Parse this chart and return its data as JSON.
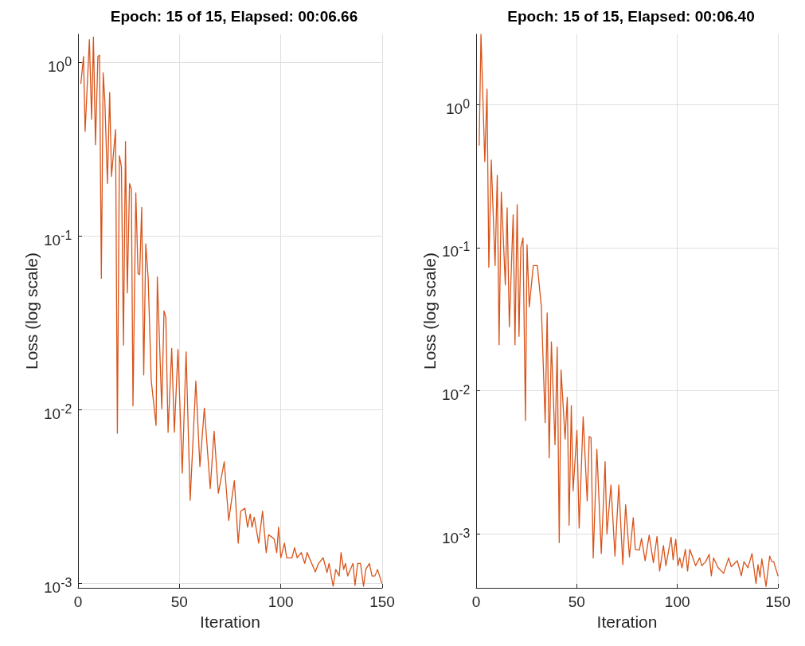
{
  "chart_data": [
    {
      "type": "line",
      "title": "Epoch: 15 of 15, Elapsed: 00:06.66",
      "xlabel": "Iteration",
      "ylabel": "Loss (log scale)",
      "log": "y",
      "grid": true,
      "marker": "none",
      "line_style": "solid",
      "xlim": [
        0,
        150
      ],
      "xticks": [
        0,
        50,
        100,
        150
      ],
      "ylim": [
        0.00094,
        1.45
      ],
      "yticks": [
        {
          "value": 0.001,
          "label": "10$^{-3}$"
        },
        {
          "value": 0.01,
          "label": "10$^{-2}$"
        },
        {
          "value": 0.1,
          "label": "10$^{-1}$"
        },
        {
          "value": 1,
          "label": "10$^{0}$"
        }
      ],
      "series": [
        {
          "color": "#d95319",
          "x": [
            1.4,
            2.7,
            3.5,
            5.6,
            6.7,
            7.6,
            8.6,
            9.8,
            10.6,
            11.5,
            12.4,
            13.2,
            14.5,
            15.6,
            16.5,
            18.5,
            19.4,
            20.4,
            21.4,
            22.4,
            23.4,
            24.3,
            25.4,
            26.3,
            27.1,
            28.5,
            29.6,
            30.4,
            31.4,
            32.4,
            33.4,
            34.6,
            36.1,
            38.5,
            39.1,
            41.3,
            42.4,
            43.3,
            44.4,
            46.2,
            47.5,
            49.3,
            51.4,
            53.3,
            55.3,
            58.1,
            60.1,
            62.3,
            65.2,
            67.1,
            69.2,
            72.1,
            74.3,
            77.1,
            79,
            80.2,
            82.3,
            83.6,
            84.9,
            85.8,
            86.9,
            89.1,
            91,
            92.8,
            94,
            96.7,
            98,
            98.9,
            100,
            101.8,
            102.9,
            105.5,
            106.8,
            108.1,
            110.1,
            111.8,
            113,
            117,
            118.6,
            120.9,
            122.8,
            123.8,
            125.8,
            127.1,
            128.8,
            129.7,
            131,
            131.9,
            133,
            135.6,
            136.6,
            137.9,
            139.3,
            140.8,
            141.9,
            143.7,
            145,
            146.4,
            147.7,
            149.8
          ],
          "values": [
            0.755,
            1.08,
            0.4,
            1.35,
            0.47,
            1.4,
            0.335,
            1.08,
            1.1,
            0.057,
            0.87,
            0.61,
            0.2,
            0.67,
            0.22,
            0.41,
            0.0073,
            0.29,
            0.25,
            0.0235,
            0.35,
            0.047,
            0.2,
            0.186,
            0.0105,
            0.177,
            0.0605,
            0.06,
            0.146,
            0.0158,
            0.09,
            0.057,
            0.0147,
            0.0081,
            0.058,
            0.0101,
            0.037,
            0.034,
            0.0074,
            0.0225,
            0.0074,
            0.0222,
            0.0043,
            0.0215,
            0.003,
            0.0146,
            0.0047,
            0.0102,
            0.0035,
            0.0075,
            0.0033,
            0.005,
            0.0023,
            0.0039,
            0.0017,
            0.0026,
            0.0027,
            0.0021,
            0.0025,
            0.0021,
            0.0024,
            0.0017,
            0.0026,
            0.0015,
            0.0019,
            0.0018,
            0.0015,
            0.0021,
            0.0014,
            0.0017,
            0.0014,
            0.0014,
            0.0016,
            0.0014,
            0.0015,
            0.0013,
            0.0015,
            0.00116,
            0.0013,
            0.0014,
            0.00115,
            0.0013,
            0.00096,
            0.0012,
            0.0011,
            0.0015,
            0.0012,
            0.0013,
            0.0011,
            0.0013,
            0.00097,
            0.0013,
            0.0013,
            0.00096,
            0.0012,
            0.0013,
            0.0011,
            0.0011,
            0.0012,
            0.001
          ]
        }
      ]
    },
    {
      "type": "line",
      "title": "Epoch: 15 of 15, Elapsed: 00:06.40",
      "xlabel": "Iteration",
      "ylabel": "Loss (log scale)",
      "log": "y",
      "grid": true,
      "marker": "none",
      "line_style": "solid",
      "xlim": [
        0,
        150
      ],
      "xticks": [
        0,
        50,
        100,
        150
      ],
      "ylim": [
        0.00042,
        3.1
      ],
      "yticks": [
        {
          "value": 0.001,
          "label": "10$^{-3}$"
        },
        {
          "value": 0.01,
          "label": "10$^{-2}$"
        },
        {
          "value": 0.1,
          "label": "10$^{-1}$"
        },
        {
          "value": 1,
          "label": "10$^{0}$"
        }
      ],
      "series": [
        {
          "color": "#d95319",
          "x": [
            1.5,
            2.4,
            4.3,
            5.4,
            6.3,
            7.5,
            9.4,
            10.5,
            11.4,
            12.5,
            14.5,
            15.4,
            16.5,
            18.4,
            19.3,
            20.4,
            21.3,
            22.2,
            23.3,
            24.5,
            25.3,
            26.4,
            28.4,
            30.4,
            32.4,
            34.3,
            35.3,
            36.3,
            37.4,
            39.2,
            40.3,
            41.3,
            42.2,
            44.2,
            45.3,
            46.2,
            47.3,
            48.2,
            50.1,
            51.2,
            53.2,
            55.2,
            56.2,
            57.1,
            58.2,
            60,
            62.2,
            64.1,
            65,
            67,
            69,
            70.9,
            72.9,
            74.3,
            76.2,
            78.1,
            79.1,
            81.1,
            82.2,
            84,
            86,
            88.1,
            89.9,
            91.2,
            93.1,
            94.3,
            96.9,
            97.9,
            99.2,
            100.3,
            101.2,
            102.3,
            104,
            105.1,
            106.2,
            109.1,
            111.1,
            112.1,
            114.1,
            115.8,
            116.9,
            118,
            120.3,
            123,
            125.5,
            126.8,
            129.8,
            131.8,
            133.1,
            135.1,
            137.1,
            139.1,
            140.1,
            141.1,
            142,
            144.1,
            145.9,
            147,
            147.9,
            150
          ],
          "values": [
            0.52,
            3.1,
            0.4,
            1.28,
            0.073,
            0.41,
            0.075,
            0.32,
            0.021,
            0.245,
            0.055,
            0.19,
            0.028,
            0.17,
            0.021,
            0.2,
            0.024,
            0.1,
            0.117,
            0.0062,
            0.105,
            0.0386,
            0.075,
            0.075,
            0.039,
            0.006,
            0.035,
            0.0034,
            0.022,
            0.0042,
            0.0202,
            0.00087,
            0.014,
            0.0046,
            0.009,
            0.00115,
            0.0079,
            0.002,
            0.0053,
            0.0011,
            0.0066,
            0.0017,
            0.0048,
            0.0047,
            0.00068,
            0.0039,
            0.00073,
            0.0032,
            0.001,
            0.0022,
            0.0007,
            0.0022,
            0.00061,
            0.0016,
            0.00069,
            0.0013,
            0.00078,
            0.00077,
            0.00093,
            0.00065,
            0.00098,
            0.00063,
            0.00096,
            0.00055,
            0.00083,
            0.0006,
            0.00095,
            0.00066,
            0.00092,
            0.0006,
            0.00068,
            0.00058,
            0.00078,
            0.00055,
            0.00078,
            0.0006,
            0.00068,
            0.0006,
            0.00064,
            0.00072,
            0.00051,
            0.00068,
            0.00058,
            0.00053,
            0.00068,
            0.00059,
            0.00065,
            0.00051,
            0.00064,
            0.00058,
            0.00073,
            0.00045,
            0.00061,
            0.0005,
            0.00067,
            0.00043,
            0.0007,
            0.00064,
            0.00064,
            0.00051
          ]
        }
      ]
    }
  ]
}
